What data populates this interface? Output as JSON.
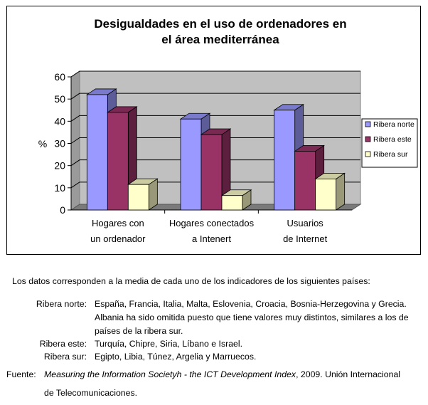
{
  "chart_data": {
    "type": "bar",
    "title_lines": [
      "Desigualdades en el uso de ordenadores en",
      "el área mediterránea"
    ],
    "ylabel": "%",
    "ylim": [
      0,
      60
    ],
    "yticks": [
      "0",
      "10",
      "20",
      "30",
      "40",
      "50",
      "60"
    ],
    "categories": [
      [
        "Hogares con",
        "un ordenador"
      ],
      [
        "Hogares conectados",
        "a Intenert"
      ],
      [
        "Usuarios",
        "de Internet"
      ]
    ],
    "series": [
      {
        "name": "Ribera norte",
        "values": [
          52,
          41,
          45
        ],
        "color": "#9999ff"
      },
      {
        "name": "Ribera este",
        "values": [
          44,
          34,
          26.5
        ],
        "color": "#993366"
      },
      {
        "name": "Ribera sur",
        "values": [
          11.5,
          6.5,
          14
        ],
        "color": "#ffffcc"
      }
    ],
    "grid": true,
    "legend_position": "right"
  },
  "notes": {
    "intro": "Los datos corresponden a la media de cada uno de los indicadores de los siguientes países:",
    "regions": [
      {
        "label": "Ribera norte:",
        "lines": [
          "España, Francia, Italia, Malta, Eslovenia, Croacia, Bosnia-Herzegovina y Grecia.",
          "Albania ha sido omitida puesto que tiene valores muy distintos, similares a los de",
          "países de la ribera sur."
        ]
      },
      {
        "label": "Ribera este:",
        "lines": [
          "Turquía, Chipre, Siria, Líbano e Israel."
        ]
      },
      {
        "label": "Ribera sur:",
        "lines": [
          "Egipto, Libia, Túnez, Argelia y Marruecos."
        ]
      }
    ],
    "source_label": "Fuente:",
    "source_title": "Measuring the Information Societyh - the ICT Development Index",
    "source_rest": ", 2009. Unión Internacional",
    "source_line2": "de Telecomunicaciones."
  }
}
